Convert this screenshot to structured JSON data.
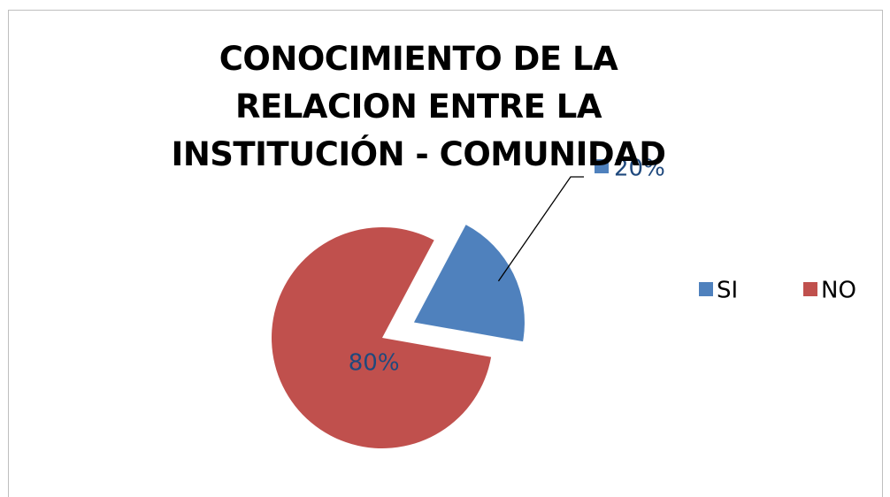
{
  "chart_data": {
    "type": "pie",
    "title": "CONOCIMIENTO DE LA RELACION ENTRE LA INSTITUCIÓN - COMUNIDAD",
    "categories": [
      "SI",
      "NO"
    ],
    "values": [
      20,
      80
    ],
    "value_labels": [
      "20%",
      "80%"
    ],
    "colors": [
      "#4f81bd",
      "#c0504d"
    ],
    "exploded": [
      true,
      false
    ],
    "legend": "right"
  }
}
